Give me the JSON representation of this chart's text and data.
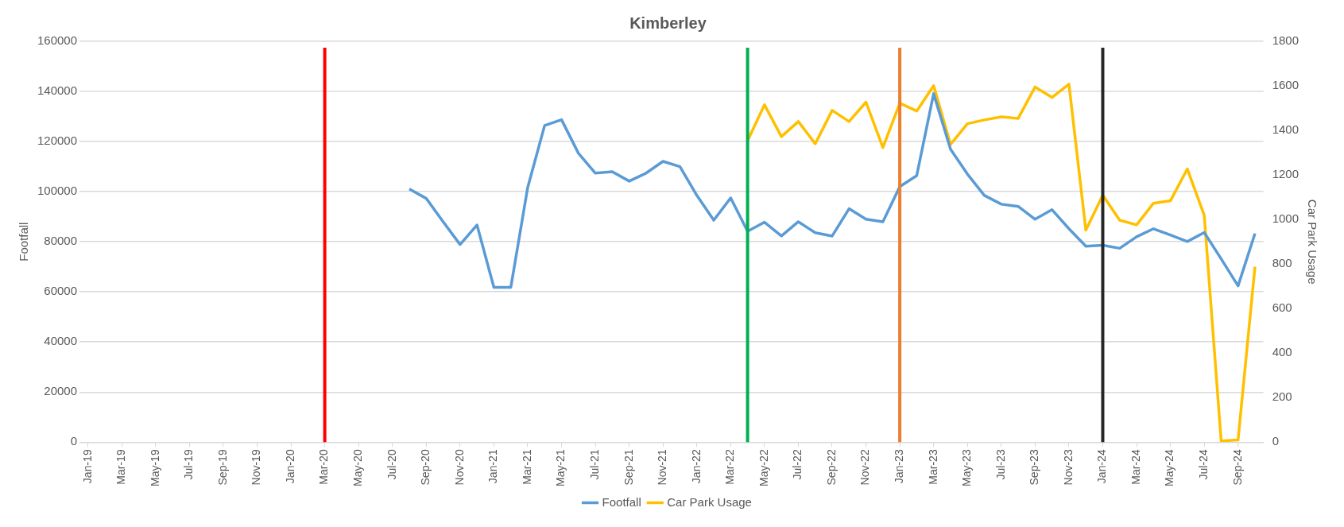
{
  "chart_data": {
    "type": "line",
    "title": "Kimberley",
    "ylabel": "Footfall",
    "y2label": "Car Park Usage",
    "series": [
      {
        "name": "Footfall",
        "color": "#5b9bd5",
        "x": [
          "2020-08",
          "2020-09",
          "2020-10",
          "2020-11",
          "2020-12",
          "2021-01",
          "2021-02",
          "2021-03",
          "2021-04",
          "2021-05",
          "2021-06",
          "2021-07",
          "2021-08",
          "2021-09",
          "2021-10",
          "2021-11",
          "2021-12",
          "2022-01",
          "2022-02",
          "2022-03",
          "2022-04",
          "2022-05",
          "2022-06",
          "2022-07",
          "2022-08",
          "2022-09",
          "2022-10",
          "2022-11",
          "2022-12",
          "2023-01",
          "2023-02",
          "2023-03",
          "2023-04",
          "2023-05",
          "2023-06",
          "2023-07",
          "2023-08",
          "2023-09",
          "2023-10",
          "2023-11",
          "2023-12",
          "2024-01",
          "2024-02",
          "2024-03",
          "2024-04",
          "2024-05",
          "2024-06",
          "2024-07",
          "2024-08",
          "2024-09",
          "2024-10"
        ],
        "values": [
          101100,
          97300,
          88000,
          78900,
          86700,
          61800,
          61800,
          101700,
          126400,
          128700,
          115300,
          107400,
          108000,
          104200,
          107400,
          112100,
          110000,
          98500,
          88600,
          97500,
          84200,
          87800,
          82300,
          88000,
          83600,
          82300,
          93200,
          89000,
          88000,
          102000,
          106400,
          139100,
          116900,
          107000,
          98500,
          95000,
          94100,
          89000,
          92800,
          85200,
          78200,
          78600,
          77400,
          82000,
          85200,
          82700,
          80100,
          83700,
          73200,
          62400,
          83300
        ]
      },
      {
        "name": "Car Park Usage",
        "color": "#ffc000",
        "axis": "y2",
        "x": [
          "2022-04",
          "2022-05",
          "2022-06",
          "2022-07",
          "2022-08",
          "2022-09",
          "2022-10",
          "2022-11",
          "2022-12",
          "2023-01",
          "2023-02",
          "2023-03",
          "2023-04",
          "2023-05",
          "2023-06",
          "2023-07",
          "2023-08",
          "2023-09",
          "2023-10",
          "2023-11",
          "2023-12",
          "2024-01",
          "2024-02",
          "2024-03",
          "2024-04",
          "2024-05",
          "2024-06",
          "2024-07",
          "2024-08",
          "2024-09",
          "2024-10"
        ],
        "values": [
          1354,
          1515,
          1372,
          1440,
          1340,
          1490,
          1440,
          1527,
          1323,
          1522,
          1487,
          1601,
          1337,
          1430,
          1447,
          1461,
          1454,
          1595,
          1548,
          1608,
          952,
          1109,
          997,
          976,
          1073,
          1084,
          1227,
          1019,
          6,
          10,
          788
        ]
      }
    ],
    "xlim": [
      "2018-12-16",
      "2024-10-16"
    ],
    "xticks": [
      {
        "value": "2019-01",
        "label": "Jan-19"
      },
      {
        "value": "2019-03",
        "label": "Mar-19"
      },
      {
        "value": "2019-05",
        "label": "May-19"
      },
      {
        "value": "2019-07",
        "label": "Jul-19"
      },
      {
        "value": "2019-09",
        "label": "Sep-19"
      },
      {
        "value": "2019-11",
        "label": "Nov-19"
      },
      {
        "value": "2020-01",
        "label": "Jan-20"
      },
      {
        "value": "2020-03",
        "label": "Mar-20"
      },
      {
        "value": "2020-05",
        "label": "May-20"
      },
      {
        "value": "2020-07",
        "label": "Jul-20"
      },
      {
        "value": "2020-09",
        "label": "Sep-20"
      },
      {
        "value": "2020-11",
        "label": "Nov-20"
      },
      {
        "value": "2021-01",
        "label": "Jan-21"
      },
      {
        "value": "2021-03",
        "label": "Mar-21"
      },
      {
        "value": "2021-05",
        "label": "May-21"
      },
      {
        "value": "2021-07",
        "label": "Jul-21"
      },
      {
        "value": "2021-09",
        "label": "Sep-21"
      },
      {
        "value": "2021-11",
        "label": "Nov-21"
      },
      {
        "value": "2022-01",
        "label": "Jan-22"
      },
      {
        "value": "2022-03",
        "label": "Mar-22"
      },
      {
        "value": "2022-05",
        "label": "May-22"
      },
      {
        "value": "2022-07",
        "label": "Jul-22"
      },
      {
        "value": "2022-09",
        "label": "Sep-22"
      },
      {
        "value": "2022-11",
        "label": "Nov-22"
      },
      {
        "value": "2023-01",
        "label": "Jan-23"
      },
      {
        "value": "2023-03",
        "label": "Mar-23"
      },
      {
        "value": "2023-05",
        "label": "May-23"
      },
      {
        "value": "2023-07",
        "label": "Jul-23"
      },
      {
        "value": "2023-09",
        "label": "Sep-23"
      },
      {
        "value": "2023-11",
        "label": "Nov-23"
      },
      {
        "value": "2024-01",
        "label": "Jan-24"
      },
      {
        "value": "2024-03",
        "label": "Mar-24"
      },
      {
        "value": "2024-05",
        "label": "May-24"
      },
      {
        "value": "2024-07",
        "label": "Jul-24"
      },
      {
        "value": "2024-09",
        "label": "Sep-24"
      }
    ],
    "ylim": [
      0,
      160000
    ],
    "yticks": [
      0,
      20000,
      40000,
      60000,
      80000,
      100000,
      120000,
      140000,
      160000
    ],
    "y2lim": [
      0,
      1800
    ],
    "y2ticks": [
      0,
      200,
      400,
      600,
      800,
      1000,
      1200,
      1400,
      1600,
      1800
    ],
    "ref_lines": [
      {
        "axis": "x",
        "value": "2020-03",
        "color": "#ff0000"
      },
      {
        "axis": "x",
        "value": "2022-04",
        "color": "#00b050"
      },
      {
        "axis": "x",
        "value": "2023-01",
        "color": "#ed7d31"
      },
      {
        "axis": "x",
        "value": "2024-01",
        "color": "#262626"
      }
    ],
    "grid": "y",
    "legend": "bottom",
    "marker": "none",
    "line_style": "solid"
  }
}
